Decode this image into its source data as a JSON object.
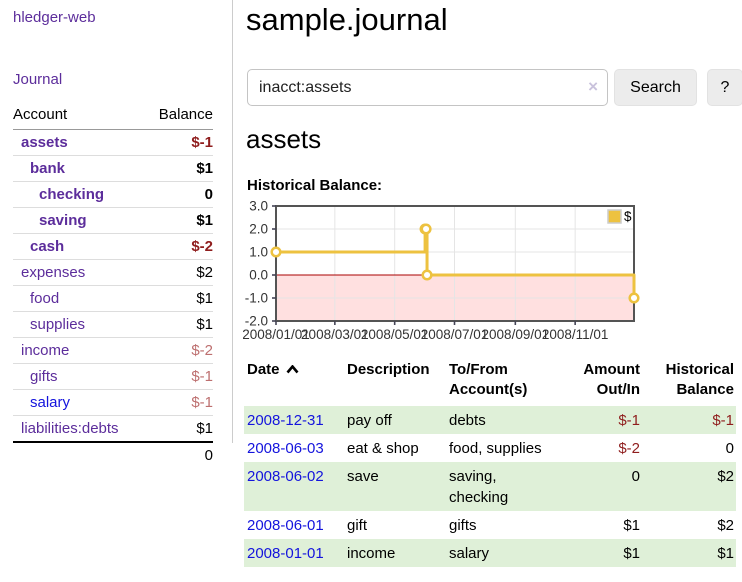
{
  "app": {
    "brand": "hledger-web",
    "nav": {
      "journal_label": "Journal"
    }
  },
  "sidebar": {
    "table": {
      "headers": [
        "Account",
        "Balance"
      ],
      "rows": [
        {
          "label": "assets",
          "depth": 1,
          "bold": true,
          "link": "purple",
          "balance": "$-1"
        },
        {
          "label": "bank",
          "depth": 2,
          "bold": true,
          "link": "purple",
          "balance": "$1"
        },
        {
          "label": "checking",
          "depth": 3,
          "bold": true,
          "link": "purple",
          "balance": "0"
        },
        {
          "label": "saving",
          "depth": 3,
          "bold": true,
          "link": "purple",
          "balance": "$1"
        },
        {
          "label": "cash",
          "depth": 2,
          "bold": true,
          "link": "purple",
          "balance": "$-2"
        },
        {
          "label": "expenses",
          "depth": 1,
          "bold": false,
          "link": "purple",
          "balance": "$2"
        },
        {
          "label": "food",
          "depth": 2,
          "bold": false,
          "link": "purple",
          "balance": "$1"
        },
        {
          "label": "supplies",
          "depth": 2,
          "bold": false,
          "link": "purple",
          "balance": "$1"
        },
        {
          "label": "income",
          "depth": 1,
          "bold": false,
          "link": "purple",
          "balance": "$-2"
        },
        {
          "label": "gifts",
          "depth": 2,
          "bold": false,
          "link": "purple",
          "balance": "$-1"
        },
        {
          "label": "salary",
          "depth": 2,
          "bold": false,
          "link": "blue",
          "balance": "$-1"
        },
        {
          "label": "liabilities:debts",
          "depth": 1,
          "bold": false,
          "link": "purple",
          "balance": "$1"
        }
      ],
      "total": "0"
    }
  },
  "main": {
    "title": "sample.journal",
    "search": {
      "value": "inacct:assets",
      "clear_icon": "×",
      "button_label": "Search",
      "help_label": "?"
    },
    "account_heading": "assets",
    "chart_title": "Historical Balance:"
  },
  "chart_data": {
    "type": "line",
    "title": "Historical Balance",
    "series": [
      {
        "name": "$",
        "color": "#EDC240",
        "step": true,
        "x": [
          "2008-01-01",
          "2008-06-01",
          "2008-06-02",
          "2008-06-03",
          "2008-12-31"
        ],
        "y": [
          1,
          2,
          2,
          0,
          -1
        ]
      }
    ],
    "x_range": [
      "2008-01-01",
      "2008-12-31"
    ],
    "ylim": [
      -2,
      3
    ],
    "yticks": [
      3,
      2,
      1,
      0,
      -1,
      -2
    ],
    "ytick_labels": [
      "3.0",
      "2.0",
      "1.0",
      "0.0",
      "-1.0",
      "-2.0"
    ],
    "xtick_dates": [
      "2008-01-01",
      "2008-03-01",
      "2008-05-01",
      "2008-07-01",
      "2008-09-01",
      "2008-11-01"
    ],
    "xtick_labels": [
      "2008/01/01",
      "2008/03/01",
      "2008/05/01",
      "2008/07/01",
      "2008/09/01",
      "2008/11/01"
    ],
    "grid": true,
    "legend_position": "top-right",
    "negative_region_color": "rgba(255,0,0,0.12)",
    "zero_line_color": "#aa0000",
    "border_color": "#545454",
    "gridline_color": "#e5e5e5"
  },
  "register": {
    "headers": [
      "Date",
      "Description",
      "To/From Account(s)",
      "Amount Out/In",
      "Historical Balance"
    ],
    "sort_icon": "chevron-up",
    "rows": [
      {
        "date": "2008-12-31",
        "description": "pay off",
        "accounts": "debts",
        "amount": "$-1",
        "balance": "$-1"
      },
      {
        "date": "2008-06-03",
        "description": "eat & shop",
        "accounts": "food, supplies",
        "amount": "$-2",
        "balance": "0"
      },
      {
        "date": "2008-06-02",
        "description": "save",
        "accounts": "saving, checking",
        "amount": "0",
        "balance": "$2"
      },
      {
        "date": "2008-06-01",
        "description": "gift",
        "accounts": "gifts",
        "amount": "$1",
        "balance": "$2"
      },
      {
        "date": "2008-01-01",
        "description": "income",
        "accounts": "salary",
        "amount": "$1",
        "balance": "$1"
      }
    ]
  }
}
